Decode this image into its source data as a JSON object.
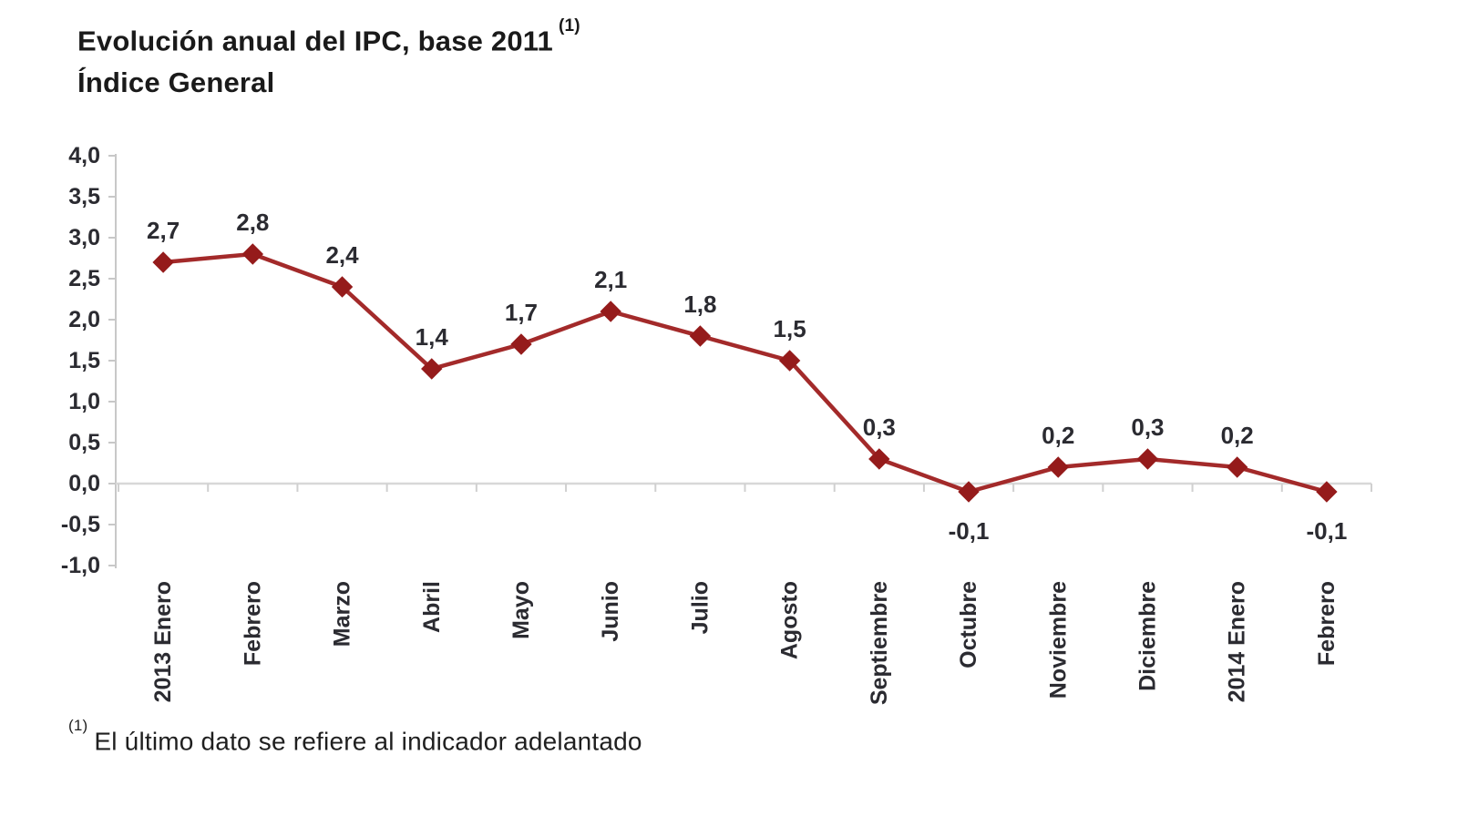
{
  "title": {
    "line1": "Evolución anual del IPC, base 2011",
    "superscript": "(1)",
    "line2": "Índice General"
  },
  "footnote": {
    "superscript": "(1)",
    "text": "El último dato se refiere al indicador adelantado"
  },
  "colors": {
    "series_line": "#A32A2A",
    "marker_fill": "#951B1B",
    "label_text": "#2b2b31",
    "title_text": "#1a1a1a",
    "y_axis_line": "#c8c8c8",
    "zero_line": "#d8d8d8",
    "category_tick": "#d0d0d0",
    "background": "#ffffff"
  },
  "chart_data": {
    "type": "line",
    "title": "Evolución anual del IPC, base 2011 (1) — Índice General",
    "categories": [
      "2013 Enero",
      "Febrero",
      "Marzo",
      "Abril",
      "Mayo",
      "Junio",
      "Julio",
      "Agosto",
      "Septiembre",
      "Octubre",
      "Noviembre",
      "Diciembre",
      "2014 Enero",
      "Febrero"
    ],
    "values": [
      2.7,
      2.8,
      2.4,
      1.4,
      1.7,
      2.1,
      1.8,
      1.5,
      0.3,
      -0.1,
      0.2,
      0.3,
      0.2,
      -0.1
    ],
    "value_labels": [
      "2,7",
      "2,8",
      "2,4",
      "1,4",
      "1,7",
      "2,1",
      "1,8",
      "1,5",
      "0,3",
      "-0,1",
      "0,2",
      "0,3",
      "0,2",
      "-0,1"
    ],
    "xlabel": "",
    "ylabel": "",
    "ylim": [
      -1.0,
      4.0
    ],
    "y_tick_values": [
      4.0,
      3.5,
      3.0,
      2.5,
      2.0,
      1.5,
      1.0,
      0.5,
      0.0,
      -0.5,
      -1.0
    ],
    "y_tick_labels": [
      "4,0",
      "3,5",
      "3,0",
      "2,5",
      "2,0",
      "1,5",
      "1,0",
      "0,5",
      "0,0",
      "-0,5",
      "-1,0"
    ],
    "grid": false,
    "legend_position": "none",
    "marker": "diamond",
    "x_tick_label_rotation": 90
  }
}
